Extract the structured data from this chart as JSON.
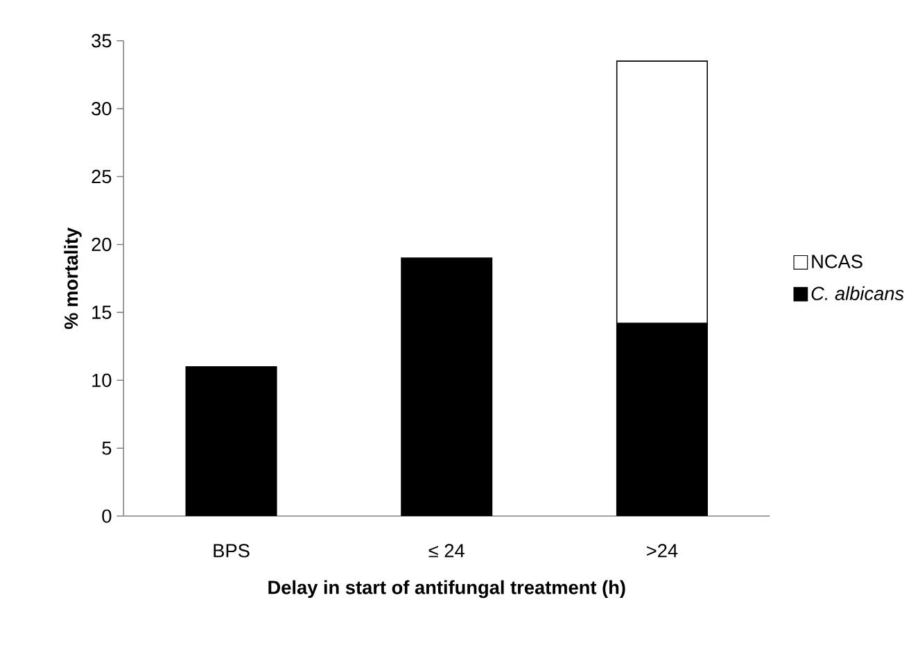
{
  "chart_data": {
    "type": "bar",
    "stacked": true,
    "xlabel": "Delay in start of antifungal treatment (h)",
    "ylabel": "% mortality",
    "categories": [
      "BPS",
      "≤ 24",
      ">24"
    ],
    "series": [
      {
        "name": "*C. albicans*",
        "color": "#000000",
        "values": [
          11,
          19,
          14.2
        ]
      },
      {
        "name": "NCAS",
        "color": "#ffffff",
        "values": [
          null,
          null,
          19.3
        ]
      }
    ],
    "ylim": [
      0,
      35
    ],
    "yticks": [
      0,
      5,
      10,
      15,
      20,
      25,
      30,
      35
    ],
    "grid": false,
    "legend": "right"
  }
}
